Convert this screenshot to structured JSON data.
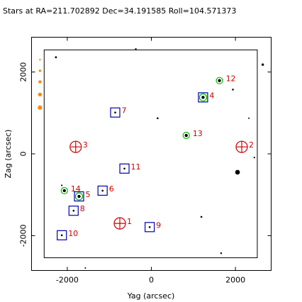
{
  "chart_data": {
    "type": "scatter",
    "title": "Stars at RA=211.702892 Dec=34.191585 Roll=104.571373",
    "xlabel": "Yag (arcsec)",
    "ylabel": "Zag (arcsec)",
    "xlim": [
      -2850,
      2850
    ],
    "ylim": [
      -2850,
      2850
    ],
    "xticks": [
      -2000,
      0,
      2000
    ],
    "yticks": [
      -2000,
      0,
      2000
    ],
    "xtick_labels": [
      "-2000",
      "0",
      "2000"
    ],
    "ytick_labels": [
      "-2000",
      "0",
      "2000"
    ],
    "grid": false,
    "legend": "none",
    "ccd_box": {
      "y_min": -2550,
      "y_max": 2520,
      "z_min": -2540,
      "z_max": 2540
    },
    "colors": {
      "acq": "#0000aa",
      "guide": "#00bb00",
      "fid": "#cc0000",
      "label": "#cc0000",
      "mag_scale": "#ff8800",
      "star": "#000000",
      "ccd": "#000000"
    },
    "labeled_items": [
      {
        "id": "1",
        "kind": "fid",
        "y": -750,
        "z": -1700
      },
      {
        "id": "2",
        "kind": "fid",
        "y": 2150,
        "z": 170
      },
      {
        "id": "3",
        "kind": "fid",
        "y": -1800,
        "z": 170
      },
      {
        "id": "4",
        "kind": "acq+guide",
        "y": 1230,
        "z": 1380
      },
      {
        "id": "5",
        "kind": "acq+guide",
        "y": -1720,
        "z": -1040
      },
      {
        "id": "6",
        "kind": "acq",
        "y": -1160,
        "z": -900
      },
      {
        "id": "7",
        "kind": "acq",
        "y": -860,
        "z": 1010
      },
      {
        "id": "8",
        "kind": "acq",
        "y": -1850,
        "z": -1390
      },
      {
        "id": "9",
        "kind": "acq",
        "y": -40,
        "z": -1790
      },
      {
        "id": "10",
        "kind": "acq",
        "y": -2130,
        "z": -1990
      },
      {
        "id": "11",
        "kind": "acq",
        "y": -640,
        "z": -360
      },
      {
        "id": "12",
        "kind": "guide",
        "y": 1620,
        "z": 1790
      },
      {
        "id": "13",
        "kind": "guide",
        "y": 830,
        "z": 450
      },
      {
        "id": "14",
        "kind": "guide",
        "y": -2070,
        "z": -900
      }
    ],
    "field_stars": [
      {
        "y": -2270,
        "z": 2360,
        "r": 1.4
      },
      {
        "y": -370,
        "z": 2560,
        "r": 1.2
      },
      {
        "y": 2650,
        "z": 2180,
        "r": 1.7
      },
      {
        "y": 1940,
        "z": 1570,
        "r": 1.3
      },
      {
        "y": 150,
        "z": 870,
        "r": 1.3
      },
      {
        "y": 2320,
        "z": 870,
        "r": 1.0
      },
      {
        "y": 2450,
        "z": -90,
        "r": 1.1
      },
      {
        "y": 2050,
        "z": -450,
        "r": 3.3
      },
      {
        "y": -2130,
        "z": -770,
        "r": 1.1
      },
      {
        "y": 1190,
        "z": -1540,
        "r": 1.3
      },
      {
        "y": 1660,
        "z": -2430,
        "r": 1.2
      },
      {
        "y": -1570,
        "z": -2790,
        "r": 1.0
      }
    ],
    "mag_scale": [
      {
        "y": -2650,
        "z": 2300,
        "r": 1.2
      },
      {
        "y": -2650,
        "z": 2030,
        "r": 1.7
      },
      {
        "y": -2650,
        "z": 1760,
        "r": 2.2
      },
      {
        "y": -2650,
        "z": 1450,
        "r": 2.7
      },
      {
        "y": -2650,
        "z": 1130,
        "r": 3.1
      }
    ]
  }
}
